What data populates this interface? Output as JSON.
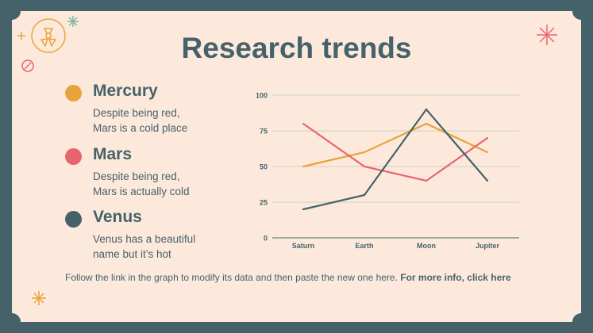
{
  "title": "Research trends",
  "items": [
    {
      "name": "Mercury",
      "desc1": "Despite being red,",
      "desc2": "Mars is a cold place",
      "color": "#e8a33a"
    },
    {
      "name": "Mars",
      "desc1": "Despite being red,",
      "desc2": "Mars is actually cold",
      "color": "#e8646e"
    },
    {
      "name": "Venus",
      "desc1": "Venus has a beautiful",
      "desc2": "name but it’s hot",
      "color": "#45626a"
    }
  ],
  "footer": {
    "text": "Follow the link in the graph to modify its data and then paste the new one here. ",
    "link": "For more info, click here"
  },
  "colors": {
    "background": "#fde9dc",
    "frame": "#45626a",
    "grid": "#c9d3c0"
  },
  "chart_data": {
    "type": "line",
    "categories": [
      "Saturn",
      "Earth",
      "Moon",
      "Jupiter"
    ],
    "yticks": [
      "0",
      "25",
      "50",
      "75",
      "100"
    ],
    "ylim": [
      0,
      100
    ],
    "grid": true,
    "series": [
      {
        "color": "#e8a33a",
        "values": [
          50,
          60,
          80,
          60
        ]
      },
      {
        "color": "#e8646e",
        "values": [
          80,
          50,
          40,
          70
        ]
      },
      {
        "color": "#45626a",
        "values": [
          20,
          30,
          90,
          40
        ]
      }
    ]
  }
}
